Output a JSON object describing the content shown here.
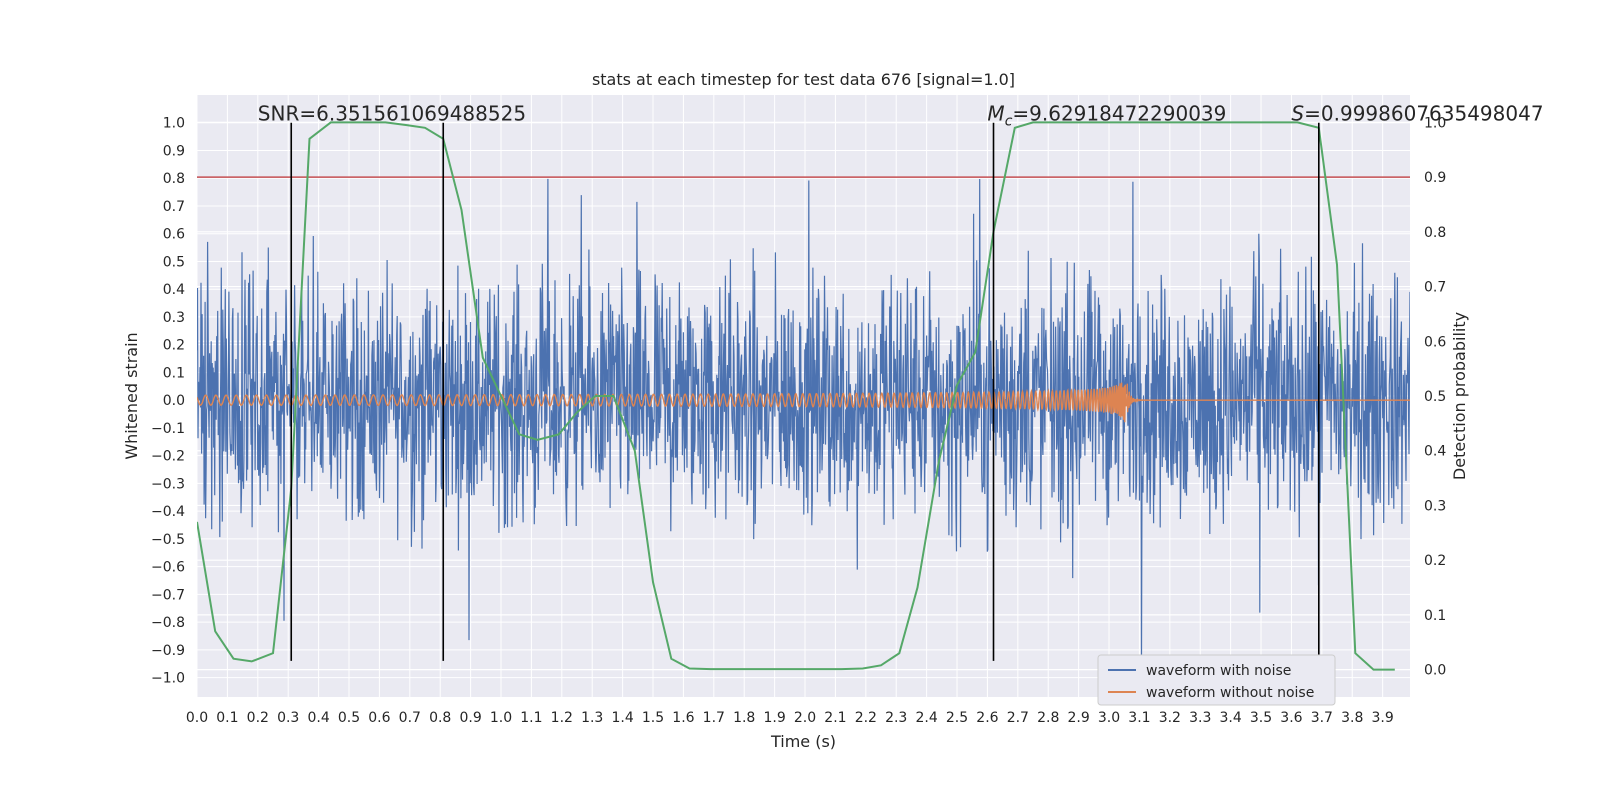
{
  "chart_data": {
    "type": "line",
    "title": "stats at each timestep for test data 676 [signal=1.0]",
    "xlabel": "Time (s)",
    "ylabel_left": "Whitened strain",
    "ylabel_right": "Detection probability",
    "xlim": [
      0.0,
      3.99
    ],
    "ylim_left": [
      -1.07,
      1.1
    ],
    "ylim_right": [
      -0.05,
      1.05
    ],
    "x_ticks": [
      "0.0",
      "0.1",
      "0.2",
      "0.3",
      "0.4",
      "0.5",
      "0.6",
      "0.7",
      "0.8",
      "0.9",
      "1.0",
      "1.1",
      "1.2",
      "1.3",
      "1.4",
      "1.5",
      "1.6",
      "1.7",
      "1.8",
      "1.9",
      "2.0",
      "2.1",
      "2.2",
      "2.3",
      "2.4",
      "2.5",
      "2.6",
      "2.7",
      "2.8",
      "2.9",
      "3.0",
      "3.1",
      "3.2",
      "3.3",
      "3.4",
      "3.5",
      "3.6",
      "3.7",
      "3.8",
      "3.9"
    ],
    "y_ticks_left": [
      "1.0",
      "0.9",
      "0.8",
      "0.7",
      "0.6",
      "0.5",
      "0.4",
      "0.3",
      "0.2",
      "0.1",
      "0.0",
      "−0.1",
      "−0.2",
      "−0.3",
      "−0.4",
      "−0.5",
      "−0.6",
      "−0.7",
      "−0.8",
      "−0.9",
      "−1.0"
    ],
    "y_ticks_right": [
      "1.0",
      "0.9",
      "0.8",
      "0.7",
      "0.6",
      "0.5",
      "0.4",
      "0.3",
      "0.2",
      "0.1",
      "0.0"
    ],
    "grid": true,
    "legend_position": "lower-right",
    "series": [
      {
        "name": "waveform with noise",
        "color": "#4c72b0",
        "axis": "left",
        "description": "whitened strain noise, amplitude roughly within -0.9..1.0"
      },
      {
        "name": "waveform without noise",
        "color": "#dd8452",
        "axis": "left",
        "description": "chirp signal, amplitude rising from ~0.02 to ~0.18, merger near t=3.06 s"
      },
      {
        "name": "detection probability",
        "color": "#55a868",
        "axis": "right",
        "x": [
          0.0,
          0.06,
          0.12,
          0.18,
          0.25,
          0.31,
          0.37,
          0.44,
          0.5,
          0.56,
          0.62,
          0.69,
          0.75,
          0.81,
          0.87,
          0.94,
          1.0,
          1.06,
          1.12,
          1.19,
          1.25,
          1.31,
          1.37,
          1.44,
          1.5,
          1.56,
          1.62,
          1.69,
          1.75,
          1.81,
          1.87,
          1.94,
          2.0,
          2.06,
          2.12,
          2.19,
          2.25,
          2.31,
          2.37,
          2.44,
          2.5,
          2.56,
          2.62,
          2.69,
          2.75,
          2.81,
          2.87,
          2.94,
          3.0,
          3.06,
          3.12,
          3.19,
          3.25,
          3.31,
          3.37,
          3.44,
          3.5,
          3.56,
          3.62,
          3.69,
          3.75,
          3.81,
          3.87,
          3.94
        ],
        "values": [
          0.27,
          0.07,
          0.02,
          0.015,
          0.03,
          0.33,
          0.97,
          1.0,
          1.0,
          1.0,
          1.0,
          0.995,
          0.99,
          0.97,
          0.84,
          0.57,
          0.5,
          0.43,
          0.42,
          0.43,
          0.47,
          0.5,
          0.5,
          0.4,
          0.16,
          0.02,
          0.002,
          0.001,
          0.001,
          0.001,
          0.001,
          0.001,
          0.001,
          0.001,
          0.001,
          0.002,
          0.008,
          0.03,
          0.15,
          0.38,
          0.52,
          0.58,
          0.8,
          0.99,
          1.0,
          1.0,
          1.0,
          1.0,
          1.0,
          1.0,
          1.0,
          1.0,
          1.0,
          1.0,
          1.0,
          1.0,
          1.0,
          1.0,
          1.0,
          0.99,
          0.74,
          0.03,
          0.0,
          0.0
        ]
      }
    ],
    "threshold": {
      "value": 0.9,
      "axis": "right",
      "color": "#c44e52"
    },
    "vertical_markers": [
      0.31,
      0.81,
      2.62,
      3.69
    ],
    "annotations": [
      {
        "text": "SNR=6.351561069488525",
        "x": 0.2,
        "y": 1.0
      },
      {
        "text": "=9.62918472290039",
        "symbol": "M",
        "subscript": "c",
        "x": 2.6,
        "y": 1.0
      },
      {
        "text": "=0.9998607635498047",
        "symbol": "S",
        "x": 3.6,
        "y": 1.0
      }
    ]
  }
}
